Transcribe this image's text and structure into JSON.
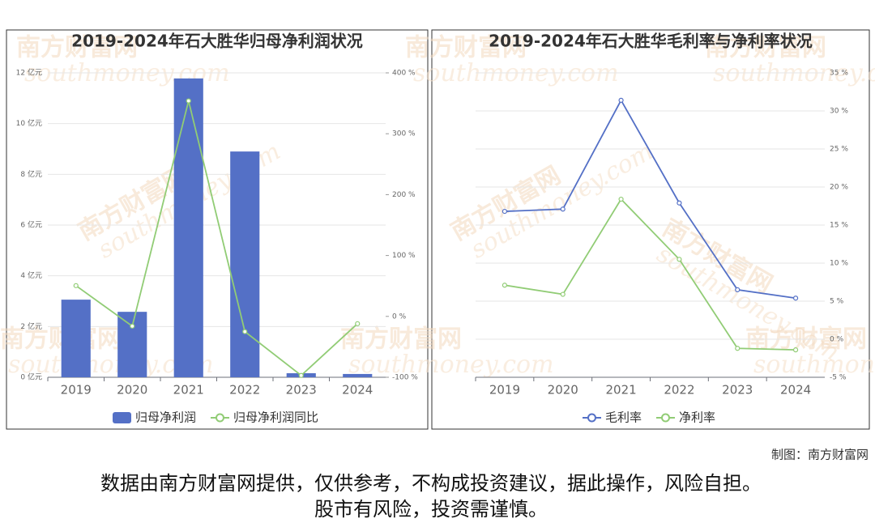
{
  "chart_data": [
    {
      "type": "bar",
      "title": "2019-2024年石大胜华归母净利润状况",
      "categories": [
        "2019",
        "2020",
        "2021",
        "2022",
        "2023",
        "2024"
      ],
      "series": [
        {
          "name": "归母净利润",
          "color": "#5470c6",
          "type": "bar",
          "values": [
            3.06,
            2.58,
            11.78,
            8.9,
            0.16,
            0.13
          ]
        },
        {
          "name": "归母净利润同比",
          "color": "#91cc75",
          "type": "line",
          "axis": "y2",
          "values": [
            50.5,
            -16,
            354,
            -25,
            -97,
            -12
          ]
        }
      ],
      "ylim": [
        0,
        12
      ],
      "yticks": [
        {
          "value": 0,
          "label": "0 亿元"
        },
        {
          "value": 2,
          "label": "2 亿元"
        },
        {
          "value": 4,
          "label": "4 亿元"
        },
        {
          "value": 6,
          "label": "6 亿元"
        },
        {
          "value": 8,
          "label": "8 亿元"
        },
        {
          "value": 10,
          "label": "10 亿元"
        },
        {
          "value": 12,
          "label": "12 亿元"
        }
      ],
      "y2lim": [
        -100,
        400
      ],
      "y2ticks": [
        {
          "value": -100,
          "label": "-100 %"
        },
        {
          "value": 0,
          "label": "0 %"
        },
        {
          "value": 100,
          "label": "100 %"
        },
        {
          "value": 200,
          "label": "200 %"
        },
        {
          "value": 300,
          "label": "300 %"
        },
        {
          "value": 400,
          "label": "400 %"
        }
      ],
      "grid": true
    },
    {
      "type": "line",
      "title": "2019-2024年石大胜华毛利率与净利率状况",
      "categories": [
        "2019",
        "2020",
        "2021",
        "2022",
        "2023",
        "2024"
      ],
      "series": [
        {
          "name": "毛利率",
          "color": "#5470c6",
          "values": [
            16.8,
            17.1,
            31.4,
            17.9,
            6.5,
            5.4
          ]
        },
        {
          "name": "净利率",
          "color": "#91cc75",
          "values": [
            7.1,
            5.9,
            18.4,
            10.5,
            -1.2,
            -1.4
          ]
        }
      ],
      "ylim": [
        -5,
        35
      ],
      "yticks": [
        {
          "value": -5,
          "label": "-5 %"
        },
        {
          "value": 0,
          "label": "0 %"
        },
        {
          "value": 5,
          "label": "5 %"
        },
        {
          "value": 10,
          "label": "10 %"
        },
        {
          "value": 15,
          "label": "15 %"
        },
        {
          "value": 20,
          "label": "20 %"
        },
        {
          "value": 25,
          "label": "25 %"
        },
        {
          "value": 30,
          "label": "30 %"
        },
        {
          "value": 35,
          "label": "35 %"
        }
      ],
      "grid": true
    }
  ],
  "watermark": [
    "南方财富网",
    "southmoney.com"
  ],
  "credit": "制图：南方财富网",
  "disclaimer": [
    "数据由南方财富网提供，仅供参考，不构成投资建议，据此操作，风险自担。",
    "股市有风险，投资需谨慎。"
  ]
}
